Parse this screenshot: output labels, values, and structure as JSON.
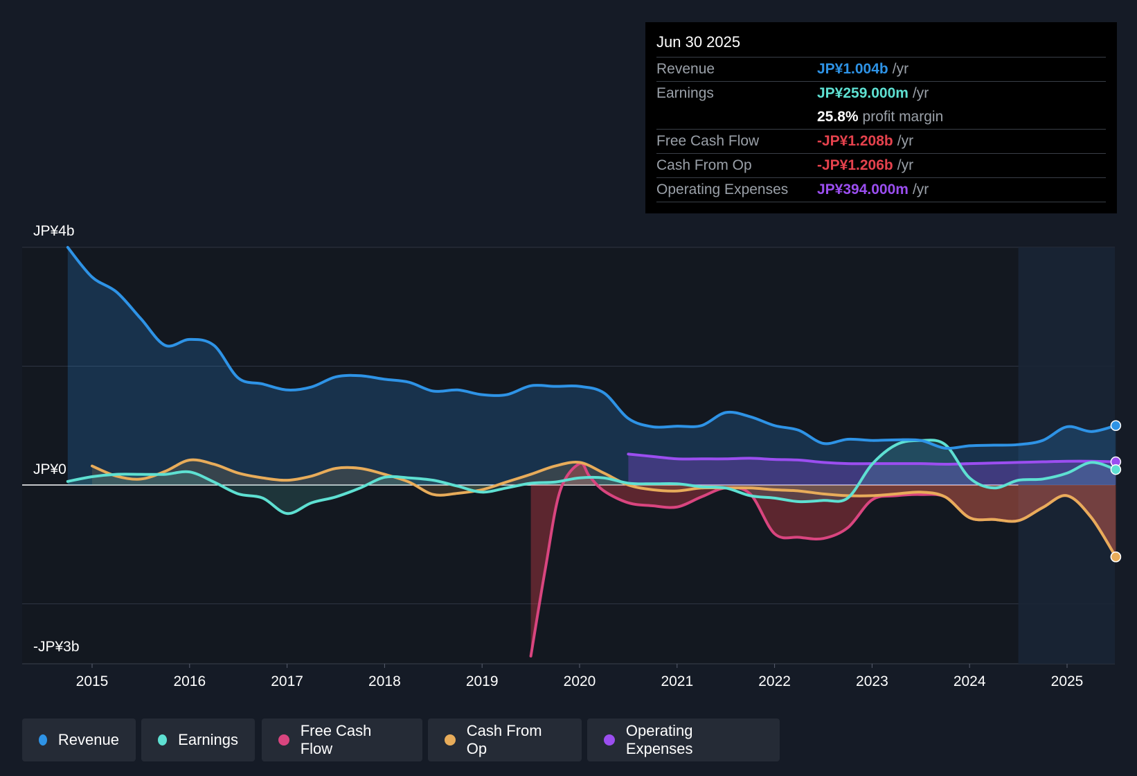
{
  "tooltip": {
    "date": "Jun 30 2025",
    "rows": [
      {
        "label": "Revenue",
        "value": "JP¥1.004b",
        "unit": "/yr",
        "color": "#2e93e6"
      },
      {
        "label": "Earnings",
        "value": "JP¥259.000m",
        "unit": "/yr",
        "color": "#5ee0d2"
      },
      {
        "label": "",
        "value": "25.8%",
        "unit": "profit margin",
        "color": "#ffffff"
      },
      {
        "label": "Free Cash Flow",
        "value": "-JP¥1.208b",
        "unit": "/yr",
        "color": "#e5424d"
      },
      {
        "label": "Cash From Op",
        "value": "-JP¥1.206b",
        "unit": "/yr",
        "color": "#e5424d"
      },
      {
        "label": "Operating Expenses",
        "value": "JP¥394.000m",
        "unit": "/yr",
        "color": "#9b4ef0"
      }
    ]
  },
  "legend": [
    {
      "label": "Revenue",
      "color": "#2e93e6"
    },
    {
      "label": "Earnings",
      "color": "#5ee0d2"
    },
    {
      "label": "Free Cash Flow",
      "color": "#d9457f"
    },
    {
      "label": "Cash From Op",
      "color": "#e8ac5a"
    },
    {
      "label": "Operating Expenses",
      "color": "#9b4ef0"
    }
  ],
  "chart_data": {
    "type": "line",
    "y_tick_labels": {
      "top": "JP¥4b",
      "zero": "JP¥0",
      "bottom": "-JP¥3b"
    },
    "ylim": [
      -3.0,
      4.0
    ],
    "xlim": [
      2014.0,
      2025.5
    ],
    "x_ticks": [
      2015,
      2016,
      2017,
      2018,
      2019,
      2020,
      2021,
      2022,
      2023,
      2024,
      2025
    ],
    "gridlines": [
      4.0,
      2.0,
      0.0,
      -2.0
    ],
    "forecast_region_start": 2024.5,
    "series": [
      {
        "name": "Revenue",
        "color": "#2e93e6",
        "fill": true,
        "points": [
          [
            2014.75,
            4.0
          ],
          [
            2015.0,
            3.5
          ],
          [
            2015.25,
            3.25
          ],
          [
            2015.5,
            2.8
          ],
          [
            2015.75,
            2.35
          ],
          [
            2016.0,
            2.45
          ],
          [
            2016.25,
            2.35
          ],
          [
            2016.5,
            1.8
          ],
          [
            2016.75,
            1.7
          ],
          [
            2017.0,
            1.6
          ],
          [
            2017.25,
            1.65
          ],
          [
            2017.5,
            1.82
          ],
          [
            2017.75,
            1.84
          ],
          [
            2018.0,
            1.78
          ],
          [
            2018.25,
            1.73
          ],
          [
            2018.5,
            1.58
          ],
          [
            2018.75,
            1.6
          ],
          [
            2019.0,
            1.52
          ],
          [
            2019.25,
            1.52
          ],
          [
            2019.5,
            1.67
          ],
          [
            2019.75,
            1.66
          ],
          [
            2020.0,
            1.66
          ],
          [
            2020.25,
            1.55
          ],
          [
            2020.5,
            1.12
          ],
          [
            2020.75,
            0.98
          ],
          [
            2021.0,
            0.99
          ],
          [
            2021.25,
            1.0
          ],
          [
            2021.5,
            1.22
          ],
          [
            2021.75,
            1.15
          ],
          [
            2022.0,
            1.0
          ],
          [
            2022.25,
            0.92
          ],
          [
            2022.5,
            0.7
          ],
          [
            2022.75,
            0.77
          ],
          [
            2023.0,
            0.75
          ],
          [
            2023.25,
            0.76
          ],
          [
            2023.5,
            0.75
          ],
          [
            2023.75,
            0.62
          ],
          [
            2024.0,
            0.66
          ],
          [
            2024.25,
            0.67
          ],
          [
            2024.5,
            0.68
          ],
          [
            2024.75,
            0.75
          ],
          [
            2025.0,
            0.98
          ],
          [
            2025.25,
            0.9
          ],
          [
            2025.5,
            1.0
          ]
        ]
      },
      {
        "name": "Earnings",
        "color": "#5ee0d2",
        "fill": true,
        "points": [
          [
            2014.75,
            0.06
          ],
          [
            2015.0,
            0.14
          ],
          [
            2015.25,
            0.18
          ],
          [
            2015.5,
            0.18
          ],
          [
            2015.75,
            0.18
          ],
          [
            2016.0,
            0.22
          ],
          [
            2016.25,
            0.05
          ],
          [
            2016.5,
            -0.15
          ],
          [
            2016.75,
            -0.22
          ],
          [
            2017.0,
            -0.48
          ],
          [
            2017.25,
            -0.3
          ],
          [
            2017.5,
            -0.2
          ],
          [
            2017.75,
            -0.05
          ],
          [
            2018.0,
            0.13
          ],
          [
            2018.25,
            0.12
          ],
          [
            2018.5,
            0.08
          ],
          [
            2018.75,
            -0.02
          ],
          [
            2019.0,
            -0.12
          ],
          [
            2019.25,
            -0.05
          ],
          [
            2019.5,
            0.03
          ],
          [
            2019.75,
            0.05
          ],
          [
            2020.0,
            0.12
          ],
          [
            2020.25,
            0.12
          ],
          [
            2020.5,
            0.03
          ],
          [
            2020.75,
            0.02
          ],
          [
            2021.0,
            0.02
          ],
          [
            2021.25,
            -0.03
          ],
          [
            2021.5,
            -0.05
          ],
          [
            2021.75,
            -0.18
          ],
          [
            2022.0,
            -0.22
          ],
          [
            2022.25,
            -0.28
          ],
          [
            2022.5,
            -0.26
          ],
          [
            2022.75,
            -0.22
          ],
          [
            2023.0,
            0.35
          ],
          [
            2023.25,
            0.68
          ],
          [
            2023.5,
            0.75
          ],
          [
            2023.75,
            0.68
          ],
          [
            2024.0,
            0.12
          ],
          [
            2024.25,
            -0.05
          ],
          [
            2024.5,
            0.08
          ],
          [
            2024.75,
            0.1
          ],
          [
            2025.0,
            0.2
          ],
          [
            2025.25,
            0.38
          ],
          [
            2025.5,
            0.26
          ]
        ]
      },
      {
        "name": "Free Cash Flow",
        "color": "#d9457f",
        "fill": true,
        "fill_color": "#e5424d",
        "points": [
          [
            2019.5,
            -2.88
          ],
          [
            2019.65,
            -1.4
          ],
          [
            2019.8,
            -0.1
          ],
          [
            2020.0,
            0.36
          ],
          [
            2020.1,
            0.15
          ],
          [
            2020.25,
            -0.1
          ],
          [
            2020.5,
            -0.3
          ],
          [
            2020.75,
            -0.35
          ],
          [
            2021.0,
            -0.37
          ],
          [
            2021.25,
            -0.2
          ],
          [
            2021.5,
            -0.05
          ],
          [
            2021.75,
            -0.15
          ],
          [
            2022.0,
            -0.82
          ],
          [
            2022.25,
            -0.88
          ],
          [
            2022.5,
            -0.9
          ],
          [
            2022.75,
            -0.72
          ],
          [
            2023.0,
            -0.25
          ],
          [
            2023.25,
            -0.18
          ],
          [
            2023.5,
            -0.16
          ],
          [
            2023.75,
            -0.2
          ],
          [
            2024.0,
            -0.55
          ],
          [
            2024.25,
            -0.58
          ],
          [
            2024.5,
            -0.6
          ],
          [
            2024.75,
            -0.38
          ],
          [
            2025.0,
            -0.18
          ],
          [
            2025.25,
            -0.55
          ],
          [
            2025.5,
            -1.21
          ]
        ]
      },
      {
        "name": "Cash From Op",
        "color": "#e8ac5a",
        "fill": true,
        "points": [
          [
            2015.0,
            0.32
          ],
          [
            2015.25,
            0.15
          ],
          [
            2015.5,
            0.1
          ],
          [
            2015.75,
            0.23
          ],
          [
            2016.0,
            0.42
          ],
          [
            2016.25,
            0.35
          ],
          [
            2016.5,
            0.2
          ],
          [
            2016.75,
            0.12
          ],
          [
            2017.0,
            0.08
          ],
          [
            2017.25,
            0.15
          ],
          [
            2017.5,
            0.28
          ],
          [
            2017.75,
            0.28
          ],
          [
            2018.0,
            0.18
          ],
          [
            2018.25,
            0.05
          ],
          [
            2018.5,
            -0.16
          ],
          [
            2018.75,
            -0.14
          ],
          [
            2019.0,
            -0.08
          ],
          [
            2019.25,
            0.05
          ],
          [
            2019.5,
            0.18
          ],
          [
            2019.75,
            0.32
          ],
          [
            2020.0,
            0.38
          ],
          [
            2020.25,
            0.2
          ],
          [
            2020.5,
            0.0
          ],
          [
            2020.75,
            -0.08
          ],
          [
            2021.0,
            -0.1
          ],
          [
            2021.25,
            -0.05
          ],
          [
            2021.5,
            -0.05
          ],
          [
            2021.75,
            -0.05
          ],
          [
            2022.0,
            -0.08
          ],
          [
            2022.25,
            -0.1
          ],
          [
            2022.5,
            -0.15
          ],
          [
            2022.75,
            -0.18
          ],
          [
            2023.0,
            -0.18
          ],
          [
            2023.25,
            -0.15
          ],
          [
            2023.5,
            -0.12
          ],
          [
            2023.75,
            -0.2
          ],
          [
            2024.0,
            -0.55
          ],
          [
            2024.25,
            -0.58
          ],
          [
            2024.5,
            -0.6
          ],
          [
            2024.75,
            -0.38
          ],
          [
            2025.0,
            -0.18
          ],
          [
            2025.25,
            -0.55
          ],
          [
            2025.5,
            -1.21
          ]
        ]
      },
      {
        "name": "Operating Expenses",
        "color": "#9b4ef0",
        "fill": true,
        "points": [
          [
            2020.5,
            0.52
          ],
          [
            2020.75,
            0.48
          ],
          [
            2021.0,
            0.44
          ],
          [
            2021.25,
            0.44
          ],
          [
            2021.5,
            0.44
          ],
          [
            2021.75,
            0.45
          ],
          [
            2022.0,
            0.43
          ],
          [
            2022.25,
            0.42
          ],
          [
            2022.5,
            0.38
          ],
          [
            2022.75,
            0.36
          ],
          [
            2023.0,
            0.36
          ],
          [
            2023.25,
            0.36
          ],
          [
            2023.5,
            0.36
          ],
          [
            2023.75,
            0.35
          ],
          [
            2024.0,
            0.36
          ],
          [
            2024.25,
            0.37
          ],
          [
            2024.5,
            0.38
          ],
          [
            2024.75,
            0.39
          ],
          [
            2025.0,
            0.4
          ],
          [
            2025.25,
            0.4
          ],
          [
            2025.5,
            0.39
          ]
        ]
      }
    ]
  }
}
